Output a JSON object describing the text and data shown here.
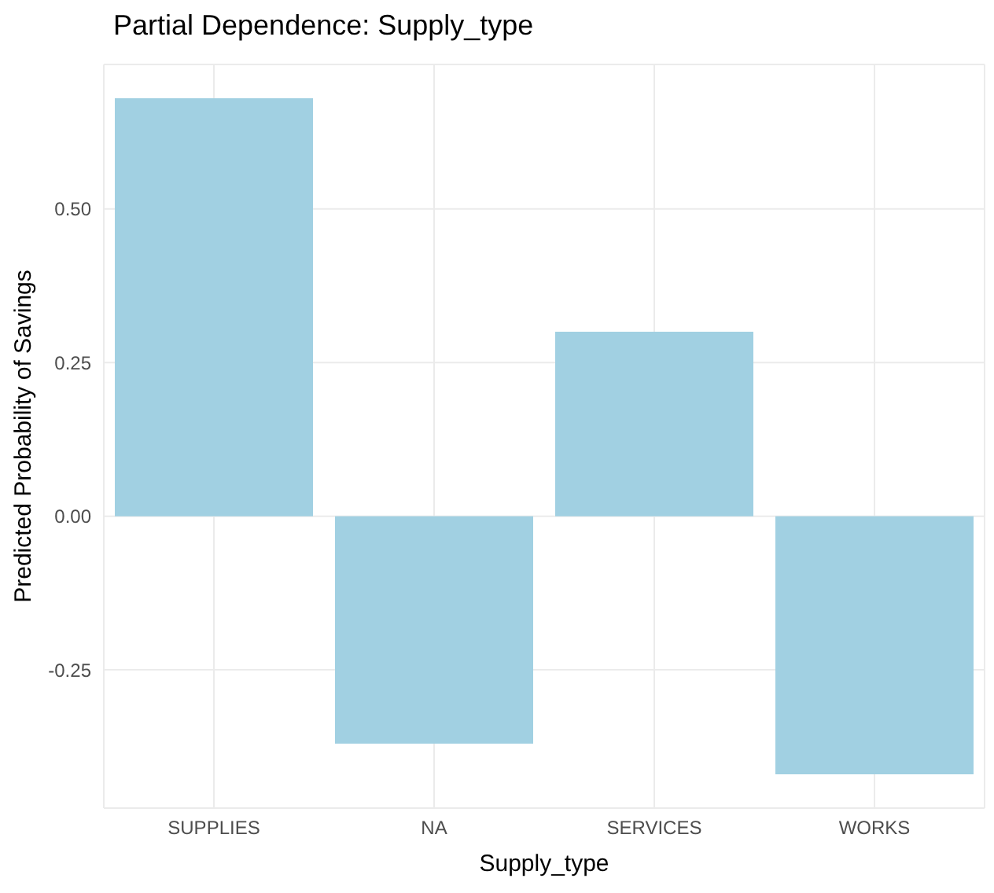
{
  "chart_data": {
    "type": "bar",
    "title": "Partial Dependence: Supply_type",
    "xlabel": "Supply_type",
    "ylabel": "Predicted Probability of Savings",
    "categories": [
      "SUPPLIES",
      "NA",
      "SERVICES",
      "WORKS"
    ],
    "values": [
      0.68,
      -0.37,
      0.3,
      -0.42
    ],
    "color": "#a1d0e2",
    "ylim": [
      -0.475,
      0.735
    ],
    "yticks": [
      {
        "value": -0.25,
        "label": "-0.25"
      },
      {
        "value": 0,
        "label": "0.00"
      },
      {
        "value": 0.25,
        "label": "0.25"
      },
      {
        "value": 0.5,
        "label": "0.50"
      }
    ],
    "grid": true
  }
}
